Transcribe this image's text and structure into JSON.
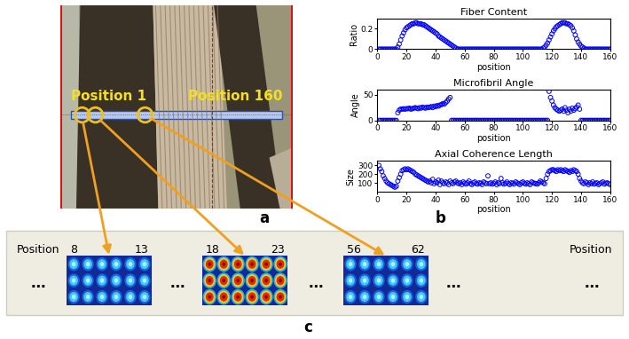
{
  "chart_data": [
    {
      "type": "scatter",
      "title": "Fiber Content",
      "xlabel": "position",
      "ylabel": "Ratio",
      "color": "#0000ff",
      "marker": "circle",
      "xlim": [
        0,
        160
      ],
      "xticks": [
        0,
        20,
        40,
        60,
        80,
        100,
        120,
        140,
        160
      ],
      "ylim": [
        0,
        0.3
      ],
      "yticks": [
        0,
        0.2
      ],
      "x": [
        1,
        2,
        3,
        4,
        5,
        6,
        7,
        8,
        9,
        10,
        11,
        12,
        13,
        14,
        15,
        16,
        17,
        18,
        19,
        20,
        21,
        22,
        23,
        24,
        25,
        26,
        27,
        28,
        29,
        30,
        31,
        32,
        33,
        34,
        35,
        36,
        37,
        38,
        39,
        40,
        41,
        42,
        43,
        44,
        45,
        46,
        47,
        48,
        49,
        50,
        51,
        52,
        53,
        54,
        55,
        56,
        57,
        58,
        59,
        60,
        61,
        62,
        63,
        64,
        65,
        66,
        67,
        68,
        69,
        70,
        71,
        72,
        73,
        74,
        75,
        76,
        77,
        78,
        79,
        80,
        81,
        82,
        83,
        84,
        85,
        86,
        87,
        88,
        89,
        90,
        91,
        92,
        93,
        94,
        95,
        96,
        97,
        98,
        99,
        100,
        101,
        102,
        103,
        104,
        105,
        106,
        107,
        108,
        109,
        110,
        111,
        112,
        113,
        114,
        115,
        116,
        117,
        118,
        119,
        120,
        121,
        122,
        123,
        124,
        125,
        126,
        127,
        128,
        129,
        130,
        131,
        132,
        133,
        134,
        135,
        136,
        137,
        138,
        139,
        140,
        141,
        142,
        143,
        144,
        145,
        146,
        147,
        148,
        149,
        150,
        151,
        152,
        153,
        154,
        155,
        156,
        157,
        158,
        159,
        160
      ],
      "values": [
        0,
        0,
        0,
        0,
        0,
        0,
        0,
        0,
        0,
        0,
        0,
        0,
        0,
        0.02,
        0.05,
        0.09,
        0.13,
        0.16,
        0.19,
        0.21,
        0.22,
        0.23,
        0.24,
        0.25,
        0.25,
        0.26,
        0.26,
        0.25,
        0.25,
        0.25,
        0.24,
        0.24,
        0.23,
        0.22,
        0.21,
        0.2,
        0.19,
        0.18,
        0.17,
        0.16,
        0.15,
        0.13,
        0.12,
        0.11,
        0.1,
        0.09,
        0.08,
        0.07,
        0.06,
        0.05,
        0.04,
        0.03,
        0.02,
        0.01,
        0,
        0,
        0,
        0,
        0,
        0,
        0,
        0,
        0,
        0,
        0,
        0,
        0,
        0,
        0,
        0,
        0,
        0,
        0,
        0,
        0,
        0,
        0,
        0,
        0,
        0,
        0,
        0,
        0,
        0,
        0,
        0,
        0,
        0,
        0,
        0,
        0,
        0,
        0,
        0,
        0,
        0,
        0,
        0,
        0,
        0,
        0,
        0,
        0,
        0,
        0,
        0,
        0,
        0,
        0,
        0,
        0,
        0,
        0,
        0.01,
        0.02,
        0.04,
        0.06,
        0.09,
        0.12,
        0.15,
        0.18,
        0.2,
        0.22,
        0.23,
        0.24,
        0.25,
        0.26,
        0.26,
        0.26,
        0.25,
        0.25,
        0.24,
        0.23,
        0.21,
        0.18,
        0.14,
        0.1,
        0.07,
        0.05,
        0.03,
        0.02,
        0.01,
        0,
        0,
        0,
        0,
        0,
        0,
        0,
        0,
        0,
        0,
        0,
        0,
        0,
        0,
        0,
        0,
        0,
        0
      ]
    },
    {
      "type": "scatter",
      "title": "Microfibril Angle",
      "xlabel": "position",
      "ylabel": "Angle",
      "color": "#0000ff",
      "marker": "circle",
      "xlim": [
        0,
        160
      ],
      "xticks": [
        0,
        20,
        40,
        60,
        80,
        100,
        120,
        140,
        160
      ],
      "ylim": [
        0,
        60
      ],
      "yticks": [
        0,
        50
      ],
      "x": [
        1,
        2,
        3,
        4,
        5,
        6,
        7,
        8,
        9,
        10,
        11,
        12,
        13,
        14,
        15,
        16,
        17,
        18,
        19,
        20,
        21,
        22,
        23,
        24,
        25,
        26,
        27,
        28,
        29,
        30,
        31,
        32,
        33,
        34,
        35,
        36,
        37,
        38,
        39,
        40,
        41,
        42,
        43,
        44,
        45,
        46,
        47,
        48,
        49,
        50,
        51,
        52,
        53,
        54,
        55,
        56,
        57,
        58,
        59,
        60,
        61,
        62,
        63,
        64,
        65,
        66,
        67,
        68,
        69,
        70,
        71,
        72,
        73,
        74,
        75,
        76,
        77,
        78,
        79,
        80,
        81,
        82,
        83,
        84,
        85,
        86,
        87,
        88,
        89,
        90,
        91,
        92,
        93,
        94,
        95,
        96,
        97,
        98,
        99,
        100,
        101,
        102,
        103,
        104,
        105,
        106,
        107,
        108,
        109,
        110,
        111,
        112,
        113,
        114,
        115,
        116,
        117,
        118,
        119,
        120,
        121,
        122,
        123,
        124,
        125,
        126,
        127,
        128,
        129,
        130,
        131,
        132,
        133,
        134,
        135,
        136,
        137,
        138,
        139,
        140,
        141,
        142,
        143,
        144,
        145,
        146,
        147,
        148,
        149,
        150,
        151,
        152,
        153,
        154,
        155,
        156,
        157,
        158,
        159,
        160
      ],
      "values": [
        0,
        0,
        0,
        0,
        0,
        0,
        0,
        0,
        0,
        0,
        0,
        0,
        0,
        15,
        20,
        22,
        22,
        23,
        22,
        23,
        23,
        24,
        22,
        23,
        24,
        25,
        24,
        23,
        25,
        24,
        26,
        25,
        24,
        26,
        25,
        26,
        27,
        25,
        28,
        27,
        29,
        28,
        30,
        31,
        33,
        32,
        35,
        38,
        42,
        45,
        0,
        0,
        0,
        0,
        0,
        0,
        0,
        0,
        0,
        0,
        0,
        0,
        0,
        0,
        0,
        0,
        0,
        0,
        0,
        0,
        0,
        0,
        0,
        0,
        0,
        0,
        0,
        0,
        0,
        0,
        0,
        0,
        0,
        0,
        0,
        0,
        0,
        0,
        0,
        0,
        0,
        0,
        0,
        0,
        0,
        0,
        0,
        0,
        0,
        0,
        0,
        0,
        0,
        0,
        0,
        0,
        0,
        0,
        0,
        0,
        0,
        0,
        0,
        0,
        0,
        0,
        0,
        57,
        45,
        38,
        30,
        25,
        22,
        20,
        18,
        20,
        22,
        18,
        25,
        20,
        15,
        22,
        18,
        24,
        20,
        23,
        26,
        30,
        22,
        0,
        0,
        0,
        0,
        0,
        0,
        0,
        0,
        0,
        0,
        0,
        0,
        0,
        0,
        0,
        0,
        0,
        0,
        0,
        0,
        0
      ]
    },
    {
      "type": "scatter",
      "title": "Axial Coherence Length",
      "xlabel": "position",
      "ylabel": "Size",
      "color": "#0000ff",
      "marker": "circle",
      "xlim": [
        0,
        160
      ],
      "xticks": [
        0,
        20,
        40,
        60,
        80,
        100,
        120,
        140,
        160
      ],
      "ylim": [
        0,
        350
      ],
      "yticks": [
        100,
        200,
        300
      ],
      "x": [
        1,
        2,
        3,
        4,
        5,
        6,
        7,
        8,
        9,
        10,
        11,
        12,
        13,
        14,
        15,
        16,
        17,
        18,
        19,
        20,
        21,
        22,
        23,
        24,
        25,
        26,
        27,
        28,
        29,
        30,
        31,
        32,
        33,
        34,
        35,
        36,
        37,
        38,
        39,
        40,
        41,
        42,
        43,
        44,
        45,
        46,
        47,
        48,
        49,
        50,
        51,
        52,
        53,
        54,
        55,
        56,
        57,
        58,
        59,
        60,
        61,
        62,
        63,
        64,
        65,
        66,
        67,
        68,
        69,
        70,
        71,
        72,
        73,
        74,
        75,
        76,
        77,
        78,
        79,
        80,
        81,
        82,
        83,
        84,
        85,
        86,
        87,
        88,
        89,
        90,
        91,
        92,
        93,
        94,
        95,
        96,
        97,
        98,
        99,
        100,
        101,
        102,
        103,
        104,
        105,
        106,
        107,
        108,
        109,
        110,
        111,
        112,
        113,
        114,
        115,
        116,
        117,
        118,
        119,
        120,
        121,
        122,
        123,
        124,
        125,
        126,
        127,
        128,
        129,
        130,
        131,
        132,
        133,
        134,
        135,
        136,
        137,
        138,
        139,
        140,
        141,
        142,
        143,
        144,
        145,
        146,
        147,
        148,
        149,
        150,
        151,
        152,
        153,
        154,
        155,
        156,
        157,
        158,
        159,
        160
      ],
      "values": [
        300,
        260,
        230,
        180,
        150,
        120,
        100,
        90,
        80,
        70,
        60,
        50,
        60,
        120,
        160,
        200,
        240,
        250,
        260,
        250,
        260,
        250,
        240,
        230,
        220,
        200,
        190,
        180,
        170,
        160,
        150,
        140,
        130,
        120,
        110,
        120,
        100,
        140,
        90,
        110,
        100,
        130,
        80,
        120,
        100,
        90,
        110,
        100,
        80,
        120,
        100,
        90,
        110,
        120,
        100,
        90,
        100,
        80,
        110,
        95,
        85,
        100,
        120,
        90,
        80,
        100,
        110,
        90,
        85,
        100,
        95,
        80,
        110,
        100,
        90,
        180,
        90,
        100,
        85,
        95,
        110,
        80,
        100,
        90,
        150,
        100,
        85,
        95,
        110,
        90,
        80,
        100,
        95,
        85,
        110,
        100,
        90,
        80,
        100,
        110,
        95,
        85,
        100,
        90,
        80,
        110,
        100,
        95,
        90,
        85,
        100,
        120,
        110,
        100,
        90,
        150,
        200,
        230,
        240,
        250,
        250,
        240,
        230,
        250,
        240,
        250,
        240,
        230,
        250,
        240,
        230,
        220,
        240,
        230,
        250,
        240,
        230,
        200,
        150,
        120,
        100,
        90,
        110,
        100,
        80,
        100,
        90,
        110,
        85,
        95,
        100,
        80,
        90,
        100,
        110,
        85,
        95,
        100,
        90,
        80
      ]
    }
  ],
  "photo": {
    "panel_label": "a",
    "start_label": "Position 1",
    "end_label": "Position 160"
  },
  "charts_label": "b",
  "patterns": {
    "panel_label": "c",
    "side_label": "Position",
    "ellipsis": "…",
    "groups": [
      {
        "start": 8,
        "end": 13,
        "color": "#40c8ff"
      },
      {
        "start": 18,
        "end": 23,
        "color": "#e03010"
      },
      {
        "start": 56,
        "end": 62,
        "color": "#40c8ff"
      }
    ]
  }
}
